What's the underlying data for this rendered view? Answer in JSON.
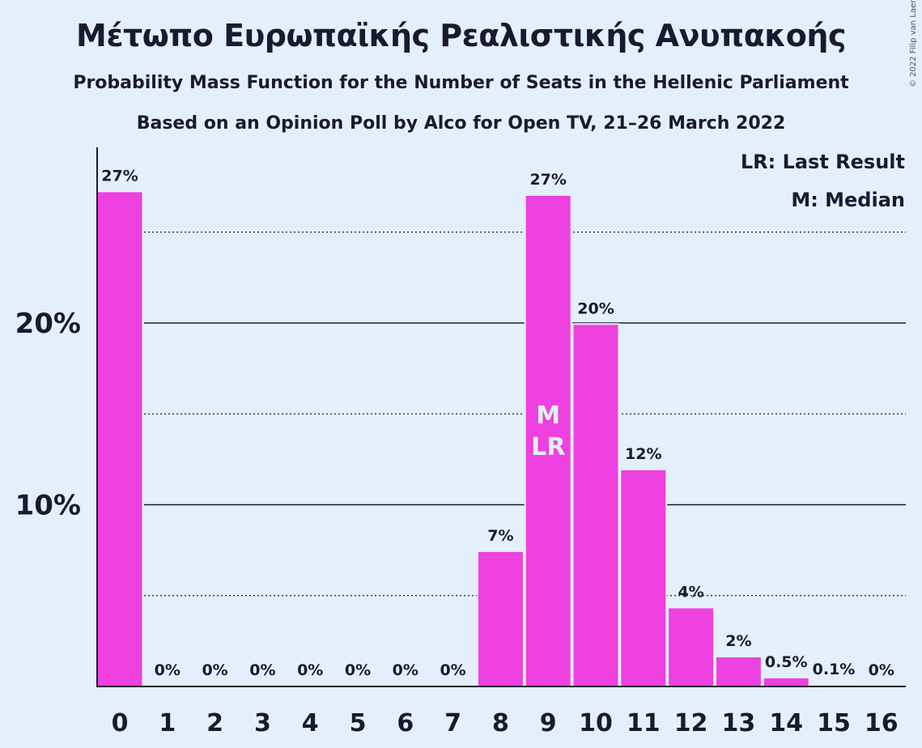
{
  "chart_data": {
    "type": "bar",
    "title": "Μέτωπο Ευρωπαϊκής Ρεαλιστικής Ανυπακοής",
    "subtitle_1": "Probability Mass Function for the Number of Seats in the Hellenic Parliament",
    "subtitle_2": "Based on an Opinion Poll by Alco for Open TV, 21–26 March 2022",
    "copyright": "© 2022 Filip van Laenen",
    "categories": [
      "0",
      "1",
      "2",
      "3",
      "4",
      "5",
      "6",
      "7",
      "8",
      "9",
      "10",
      "11",
      "12",
      "13",
      "14",
      "15",
      "16"
    ],
    "values": [
      27.2,
      0,
      0,
      0,
      0,
      0,
      0,
      0,
      7.4,
      27.0,
      19.9,
      11.9,
      4.3,
      1.6,
      0.45,
      0.05,
      0
    ],
    "data_labels": [
      "27%",
      "0%",
      "0%",
      "0%",
      "0%",
      "0%",
      "0%",
      "0%",
      "7%",
      "27%",
      "20%",
      "12%",
      "4%",
      "2%",
      "0.5%",
      "0.1%",
      "0%"
    ],
    "y_ticks": [
      {
        "value": 10,
        "label": "10%"
      },
      {
        "value": 20,
        "label": "20%"
      }
    ],
    "y_minor_ticks": [
      5,
      15,
      25
    ],
    "ylim": [
      0,
      29.8
    ],
    "median_category": "9",
    "median_marker": "M",
    "last_result_category": "9",
    "last_result_marker": "LR",
    "legend": {
      "lr": "LR: Last Result",
      "m": "M: Median",
      "position": "top-right"
    },
    "colors": {
      "bar": "#ee41e0",
      "background": "#e3f0fc",
      "text": "#1a1a2e",
      "marker_text": "#e3f0fc"
    },
    "grid": true
  }
}
